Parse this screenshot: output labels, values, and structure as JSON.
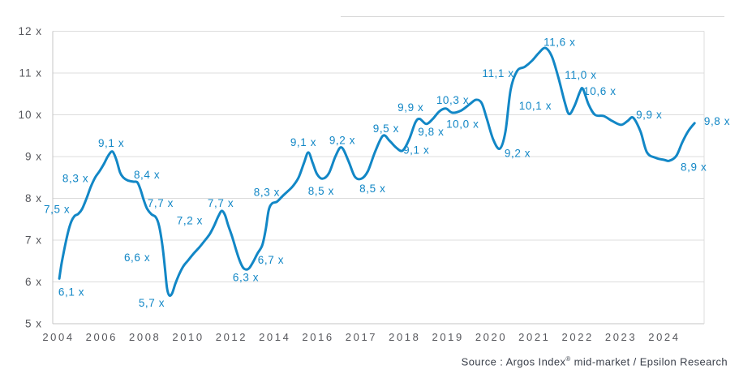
{
  "chart_data": {
    "type": "line",
    "title": "",
    "legend": "none",
    "grid": "horizontal",
    "x_unit": "decimal year",
    "y_unit": "EV/EBITDA multiple (x)",
    "y_axis": {
      "min": 5,
      "max": 12,
      "ticks": [
        "5 x",
        "6 x",
        "7 x",
        "8 x",
        "9 x",
        "10 x",
        "11 x",
        "12 x"
      ],
      "tick_values": [
        5,
        6,
        7,
        8,
        9,
        10,
        11,
        12
      ]
    },
    "x_axis": {
      "ticks": [
        "2004",
        "2006",
        "2008",
        "2010",
        "2012",
        "2014",
        "2016",
        "2017",
        "2018",
        "2019",
        "2020",
        "2021",
        "2022",
        "2023",
        "2024"
      ],
      "scale_note": "equal spacing per tick: 2-year steps from 2004 to 2016, 1-year steps from 2016 to 2024"
    },
    "series": [
      {
        "name": "Argos Index mid-market EV/EBITDA multiple",
        "color": "#1287c6",
        "curve": [
          [
            2004.04,
            6.08
          ],
          [
            2004.15,
            6.45
          ],
          [
            2004.3,
            6.85
          ],
          [
            2004.45,
            7.2
          ],
          [
            2004.6,
            7.45
          ],
          [
            2004.75,
            7.58
          ],
          [
            2004.92,
            7.63
          ],
          [
            2005.1,
            7.75
          ],
          [
            2005.3,
            8.0
          ],
          [
            2005.5,
            8.28
          ],
          [
            2005.7,
            8.5
          ],
          [
            2005.9,
            8.65
          ],
          [
            2006.1,
            8.82
          ],
          [
            2006.3,
            9.02
          ],
          [
            2006.5,
            9.12
          ],
          [
            2006.68,
            8.92
          ],
          [
            2006.85,
            8.62
          ],
          [
            2007.0,
            8.5
          ],
          [
            2007.2,
            8.43
          ],
          [
            2007.45,
            8.4
          ],
          [
            2007.65,
            8.38
          ],
          [
            2007.8,
            8.2
          ],
          [
            2007.95,
            7.95
          ],
          [
            2008.1,
            7.75
          ],
          [
            2008.3,
            7.62
          ],
          [
            2008.5,
            7.55
          ],
          [
            2008.65,
            7.35
          ],
          [
            2008.8,
            6.9
          ],
          [
            2008.92,
            6.35
          ],
          [
            2009.02,
            5.85
          ],
          [
            2009.12,
            5.68
          ],
          [
            2009.25,
            5.72
          ],
          [
            2009.4,
            5.95
          ],
          [
            2009.58,
            6.18
          ],
          [
            2009.78,
            6.38
          ],
          [
            2010.0,
            6.52
          ],
          [
            2010.25,
            6.68
          ],
          [
            2010.5,
            6.82
          ],
          [
            2010.75,
            6.98
          ],
          [
            2011.0,
            7.15
          ],
          [
            2011.2,
            7.35
          ],
          [
            2011.4,
            7.58
          ],
          [
            2011.55,
            7.7
          ],
          [
            2011.7,
            7.6
          ],
          [
            2011.85,
            7.35
          ],
          [
            2012.05,
            7.05
          ],
          [
            2012.25,
            6.7
          ],
          [
            2012.45,
            6.42
          ],
          [
            2012.6,
            6.31
          ],
          [
            2012.8,
            6.32
          ],
          [
            2013.0,
            6.48
          ],
          [
            2013.2,
            6.68
          ],
          [
            2013.42,
            6.88
          ],
          [
            2013.58,
            7.25
          ],
          [
            2013.72,
            7.72
          ],
          [
            2013.88,
            7.88
          ],
          [
            2014.1,
            7.92
          ],
          [
            2014.35,
            8.05
          ],
          [
            2014.6,
            8.17
          ],
          [
            2014.85,
            8.3
          ],
          [
            2015.1,
            8.5
          ],
          [
            2015.35,
            8.85
          ],
          [
            2015.55,
            9.1
          ],
          [
            2015.75,
            8.85
          ],
          [
            2015.95,
            8.58
          ],
          [
            2016.1,
            8.47
          ],
          [
            2016.25,
            8.6
          ],
          [
            2016.4,
            9.0
          ],
          [
            2016.54,
            9.22
          ],
          [
            2016.7,
            8.9
          ],
          [
            2016.85,
            8.52
          ],
          [
            2017.0,
            8.47
          ],
          [
            2017.15,
            8.65
          ],
          [
            2017.32,
            9.12
          ],
          [
            2017.5,
            9.5
          ],
          [
            2017.65,
            9.38
          ],
          [
            2017.8,
            9.22
          ],
          [
            2017.95,
            9.14
          ],
          [
            2018.1,
            9.4
          ],
          [
            2018.25,
            9.82
          ],
          [
            2018.35,
            9.9
          ],
          [
            2018.5,
            9.78
          ],
          [
            2018.65,
            9.9
          ],
          [
            2018.8,
            10.08
          ],
          [
            2018.95,
            10.15
          ],
          [
            2019.1,
            10.05
          ],
          [
            2019.3,
            10.1
          ],
          [
            2019.5,
            10.25
          ],
          [
            2019.65,
            10.36
          ],
          [
            2019.78,
            10.28
          ],
          [
            2019.9,
            9.9
          ],
          [
            2020.05,
            9.4
          ],
          [
            2020.2,
            9.19
          ],
          [
            2020.33,
            9.6
          ],
          [
            2020.45,
            10.6
          ],
          [
            2020.6,
            11.05
          ],
          [
            2020.78,
            11.15
          ],
          [
            2020.95,
            11.3
          ],
          [
            2021.1,
            11.48
          ],
          [
            2021.25,
            11.6
          ],
          [
            2021.4,
            11.4
          ],
          [
            2021.55,
            10.9
          ],
          [
            2021.7,
            10.3
          ],
          [
            2021.8,
            10.02
          ],
          [
            2021.92,
            10.2
          ],
          [
            2022.05,
            10.55
          ],
          [
            2022.12,
            10.62
          ],
          [
            2022.25,
            10.25
          ],
          [
            2022.4,
            10.0
          ],
          [
            2022.6,
            9.97
          ],
          [
            2022.8,
            9.85
          ],
          [
            2023.0,
            9.76
          ],
          [
            2023.15,
            9.85
          ],
          [
            2023.28,
            9.93
          ],
          [
            2023.45,
            9.6
          ],
          [
            2023.6,
            9.1
          ],
          [
            2023.8,
            8.97
          ],
          [
            2024.0,
            8.92
          ],
          [
            2024.12,
            8.9
          ],
          [
            2024.28,
            9.02
          ],
          [
            2024.42,
            9.35
          ],
          [
            2024.56,
            9.62
          ],
          [
            2024.7,
            9.8
          ]
        ]
      }
    ],
    "annotations": [
      {
        "text": "6,1 x",
        "x": 2004.6,
        "y": 5.76
      },
      {
        "text": "7,5 x",
        "x": 2003.93,
        "y": 7.74
      },
      {
        "text": "8,3 x",
        "x": 2004.79,
        "y": 8.48
      },
      {
        "text": "9,1 x",
        "x": 2006.44,
        "y": 9.33
      },
      {
        "text": "8,4 x",
        "x": 2008.09,
        "y": 8.57
      },
      {
        "text": "7,7 x",
        "x": 2008.72,
        "y": 7.89
      },
      {
        "text": "6,6 x",
        "x": 2007.64,
        "y": 6.59
      },
      {
        "text": "5,7 x",
        "x": 2008.31,
        "y": 5.5
      },
      {
        "text": "7,2 x",
        "x": 2010.07,
        "y": 7.47
      },
      {
        "text": "7,7 x",
        "x": 2011.5,
        "y": 7.89
      },
      {
        "text": "6,3 x",
        "x": 2012.66,
        "y": 6.11
      },
      {
        "text": "6,7 x",
        "x": 2013.82,
        "y": 6.53
      },
      {
        "text": "8,3 x",
        "x": 2013.63,
        "y": 8.15
      },
      {
        "text": "9,1 x",
        "x": 2015.32,
        "y": 9.35
      },
      {
        "text": "8,5 x",
        "x": 2016.07,
        "y": 8.18
      },
      {
        "text": "9,2 x",
        "x": 2016.56,
        "y": 9.39
      },
      {
        "text": "8,5 x",
        "x": 2017.26,
        "y": 8.24
      },
      {
        "text": "9,5 x",
        "x": 2017.57,
        "y": 9.68
      },
      {
        "text": "9,1 x",
        "x": 2018.27,
        "y": 9.16
      },
      {
        "text": "9,9 x",
        "x": 2018.14,
        "y": 10.18
      },
      {
        "text": "9,8 x",
        "x": 2018.61,
        "y": 9.6
      },
      {
        "text": "10,3 x",
        "x": 2019.11,
        "y": 10.36
      },
      {
        "text": "10,0 x",
        "x": 2019.34,
        "y": 9.78
      },
      {
        "text": "11,1 x",
        "x": 2020.16,
        "y": 11.0
      },
      {
        "text": "9,2 x",
        "x": 2020.61,
        "y": 9.08
      },
      {
        "text": "10,1 x",
        "x": 2021.02,
        "y": 10.22
      },
      {
        "text": "11,6 x",
        "x": 2021.58,
        "y": 11.74
      },
      {
        "text": "11,0 x",
        "x": 2022.07,
        "y": 10.96
      },
      {
        "text": "10,6 x",
        "x": 2022.51,
        "y": 10.57
      },
      {
        "text": "9,9 x",
        "x": 2023.65,
        "y": 10.01
      },
      {
        "text": "8,9 x",
        "x": 2024.68,
        "y": 8.75
      },
      {
        "text": "9,8 x",
        "x": 2025.22,
        "y": 9.85
      }
    ]
  },
  "source_caption": {
    "prefix": "Source : Argos Index",
    "sup": "®",
    "suffix": " mid-market / Epsilon Research"
  },
  "colors": {
    "line": "#1287c6",
    "label_text": "#1287c6",
    "axis_text": "#55565b",
    "gridline": "#dcdcdc",
    "axis_line": "#c4c4c6",
    "divider": "#d8d8d8",
    "background": "#ffffff"
  }
}
